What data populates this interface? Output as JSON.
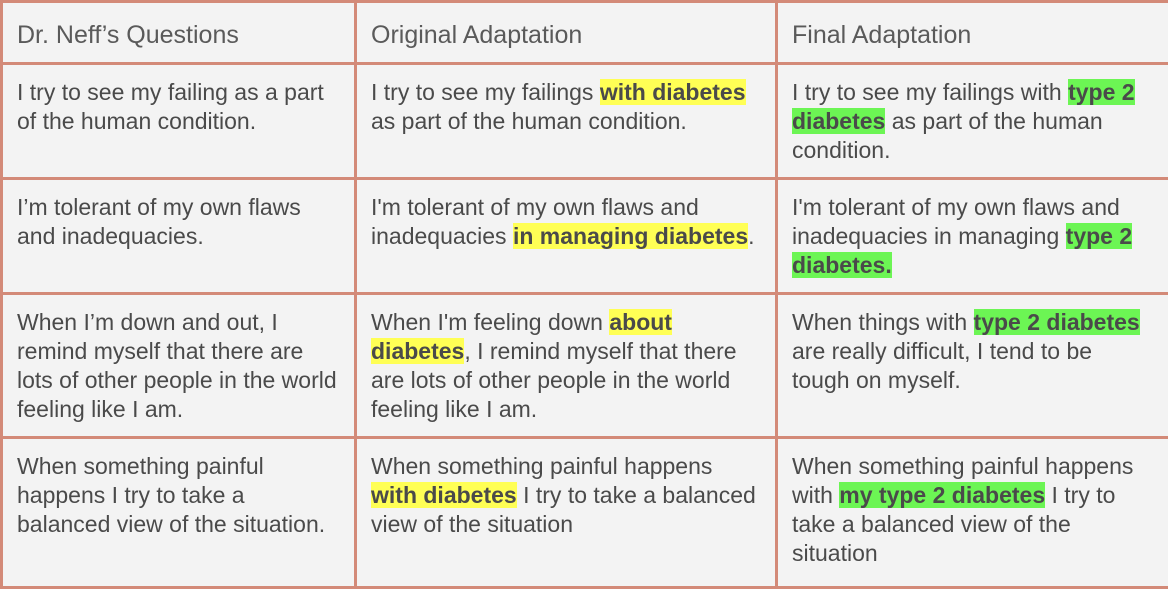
{
  "table": {
    "headers": [
      "Dr. Neff’s Questions",
      "Original Adaptation",
      "Final Adaptation"
    ],
    "rows": [
      {
        "question": "I try to see my failing as a part of the human condition.",
        "original": {
          "before": "I try to see my failings ",
          "highlight": "with diabetes",
          "after": " as part of the human condition."
        },
        "final": {
          "before": "I try to see my failings with ",
          "highlight": "type 2 diabetes",
          "after": " as part of the human condition."
        }
      },
      {
        "question": "I’m tolerant of my own flaws and inadequacies.",
        "original": {
          "before": "I'm tolerant of my own flaws and inadequacies ",
          "highlight": "in managing diabetes",
          "after": "."
        },
        "final": {
          "before": "I'm tolerant of my own flaws and inadequacies in managing ",
          "highlight": "type 2 diabetes.",
          "after": ""
        }
      },
      {
        "question": "When I’m down and out, I remind myself that there are lots of other people in the world feeling like I am.",
        "original": {
          "before": "When I'm feeling down ",
          "highlight": "about diabetes",
          "after": ", I remind myself that there are lots of other people in the world feeling like I am."
        },
        "final": {
          "before": "When things with ",
          "highlight": "type 2 diabetes",
          "after": " are really difficult, I tend to be tough on myself."
        }
      },
      {
        "question": "When something painful happens I try to take a balanced view of the situation.",
        "original": {
          "before": "When something painful happens ",
          "highlight": "with diabetes",
          "after": " I try to take a balanced view of the situation"
        },
        "final": {
          "before": "When something painful happens with ",
          "highlight": "my type 2 diabetes",
          "after": " I try to take a balanced view of the situation"
        }
      }
    ]
  },
  "colors": {
    "border": "#d38a78",
    "cell_background": "#f3f3f3",
    "original_highlight": "#ffff55",
    "final_highlight": "#6cf554"
  }
}
